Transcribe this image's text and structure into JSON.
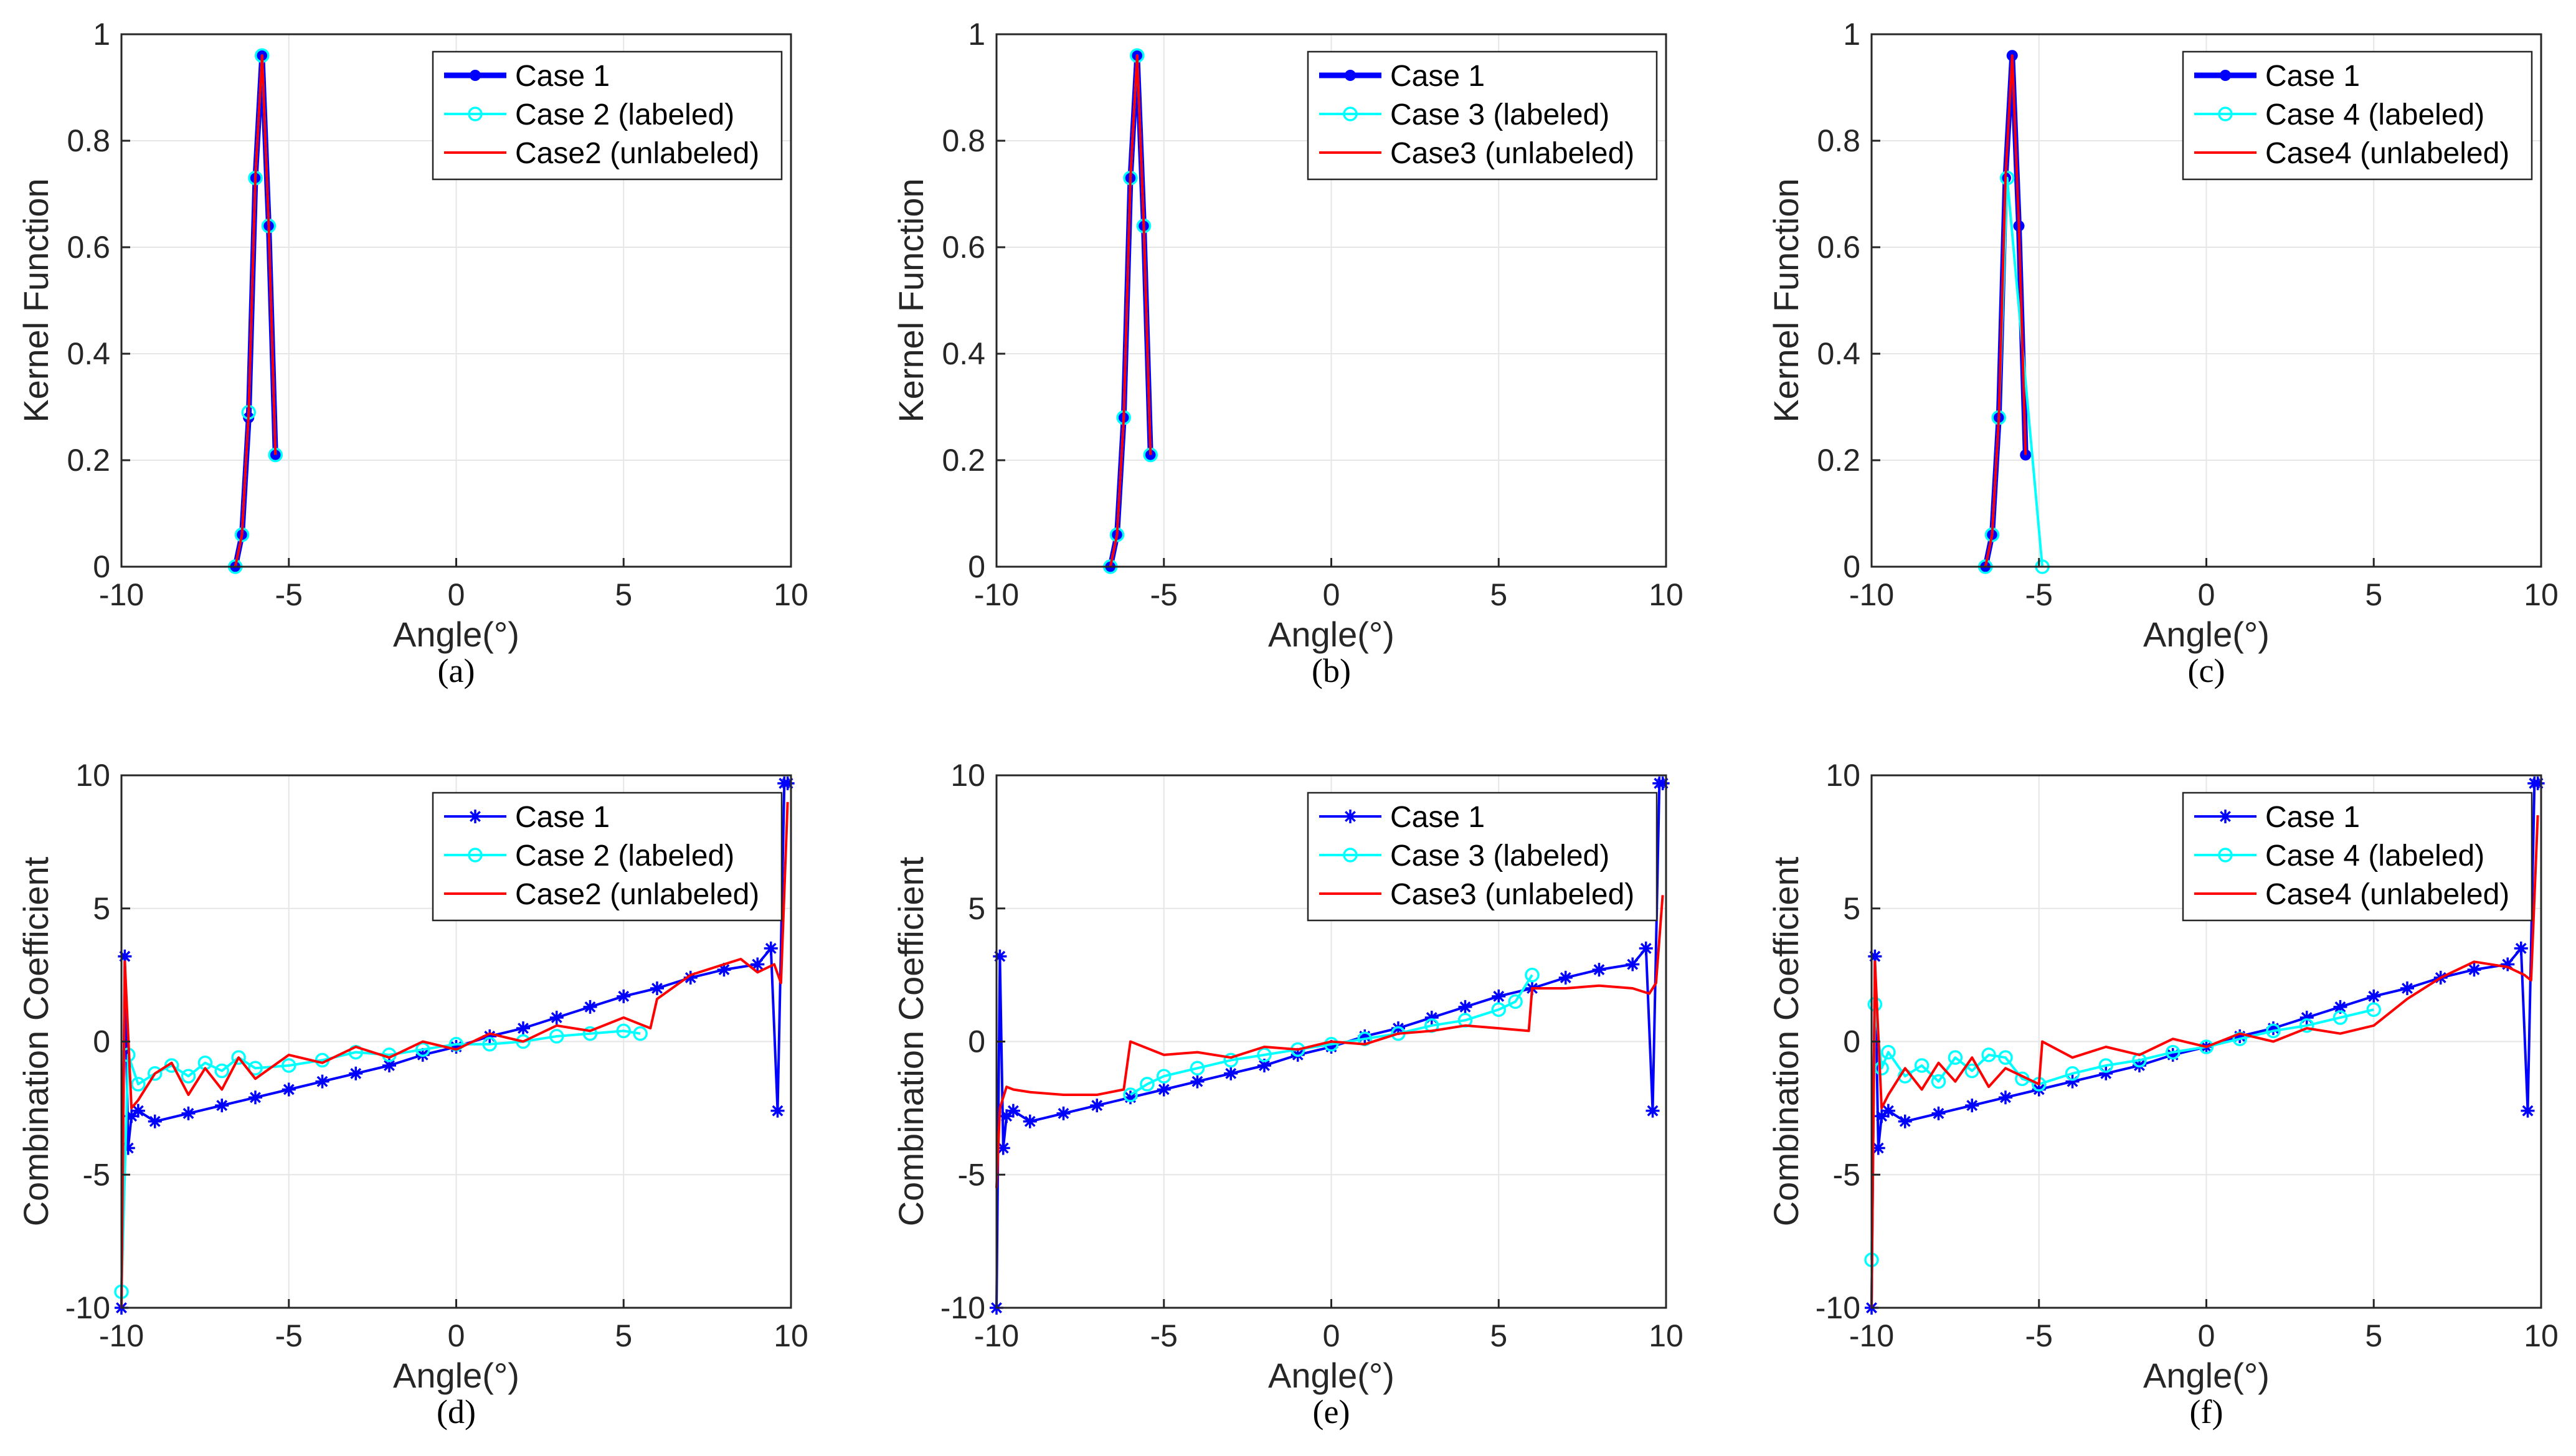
{
  "chart_data": [
    {
      "id": "a",
      "type": "line",
      "caption": "(a)",
      "xlabel": "Angle(°)",
      "ylabel": "Kernel Function",
      "xlim": [
        -10,
        10
      ],
      "ylim": [
        0,
        1
      ],
      "xticks": [
        -10,
        -5,
        0,
        5,
        10
      ],
      "yticks": [
        0,
        0.2,
        0.4,
        0.6,
        0.8,
        1
      ],
      "ytick_labels": [
        "0",
        "0.2",
        "0.4",
        "0.6",
        "0.8",
        "1"
      ],
      "grid": true,
      "legend": "top-right",
      "series": [
        {
          "name": "Case 1",
          "color": "#0000ff",
          "marker": "dot",
          "thick": true,
          "x": [
            -6.6,
            -6.4,
            -6.2,
            -6.0,
            -5.8,
            -5.6,
            -5.4
          ],
          "y": [
            0.0,
            0.06,
            0.28,
            0.73,
            0.96,
            0.64,
            0.21
          ]
        },
        {
          "name": "Case 2 (labeled)",
          "color": "#00ffff",
          "marker": "circle",
          "x": [
            -6.6,
            -6.4,
            -6.2,
            -6.0,
            -5.8,
            -5.6,
            -5.4
          ],
          "y": [
            0.0,
            0.06,
            0.29,
            0.73,
            0.96,
            0.64,
            0.21
          ]
        },
        {
          "name": "Case2 (unlabeled)",
          "color": "#ff0000",
          "marker": "none",
          "x": [
            -6.6,
            -6.4,
            -6.2,
            -6.0,
            -5.8,
            -5.6,
            -5.4
          ],
          "y": [
            0.0,
            0.06,
            0.29,
            0.73,
            0.96,
            0.64,
            0.21
          ]
        }
      ]
    },
    {
      "id": "b",
      "type": "line",
      "caption": "(b)",
      "xlabel": "Angle(°)",
      "ylabel": "Kernel Function",
      "xlim": [
        -10,
        10
      ],
      "ylim": [
        0,
        1
      ],
      "xticks": [
        -10,
        -5,
        0,
        5,
        10
      ],
      "yticks": [
        0,
        0.2,
        0.4,
        0.6,
        0.8,
        1
      ],
      "ytick_labels": [
        "0",
        "0.2",
        "0.4",
        "0.6",
        "0.8",
        "1"
      ],
      "grid": true,
      "legend": "top-right",
      "series": [
        {
          "name": "Case 1",
          "color": "#0000ff",
          "marker": "dot",
          "thick": true,
          "x": [
            -6.6,
            -6.4,
            -6.2,
            -6.0,
            -5.8,
            -5.6,
            -5.4
          ],
          "y": [
            0.0,
            0.06,
            0.28,
            0.73,
            0.96,
            0.64,
            0.21
          ]
        },
        {
          "name": "Case 3 (labeled)",
          "color": "#00ffff",
          "marker": "circle",
          "x": [
            -6.6,
            -6.4,
            -6.2,
            -6.0,
            -5.8,
            -5.6,
            -5.4
          ],
          "y": [
            0.0,
            0.06,
            0.28,
            0.73,
            0.96,
            0.64,
            0.21
          ]
        },
        {
          "name": "Case3 (unlabeled)",
          "color": "#ff0000",
          "marker": "none",
          "x": [
            -6.6,
            -6.4,
            -6.2,
            -6.0,
            -5.8,
            -5.6,
            -5.4
          ],
          "y": [
            0.0,
            0.06,
            0.28,
            0.73,
            0.96,
            0.64,
            0.21
          ]
        }
      ]
    },
    {
      "id": "c",
      "type": "line",
      "caption": "(c)",
      "xlabel": "Angle(°)",
      "ylabel": "Kernel Function",
      "xlim": [
        -10,
        10
      ],
      "ylim": [
        0,
        1
      ],
      "xticks": [
        -10,
        -5,
        0,
        5,
        10
      ],
      "yticks": [
        0,
        0.2,
        0.4,
        0.6,
        0.8,
        1
      ],
      "ytick_labels": [
        "0",
        "0.2",
        "0.4",
        "0.6",
        "0.8",
        "1"
      ],
      "grid": true,
      "legend": "top-right",
      "series": [
        {
          "name": "Case 1",
          "color": "#0000ff",
          "marker": "dot",
          "thick": true,
          "x": [
            -6.6,
            -6.4,
            -6.2,
            -6.0,
            -5.8,
            -5.6,
            -5.4
          ],
          "y": [
            0.0,
            0.06,
            0.28,
            0.73,
            0.96,
            0.64,
            0.21
          ]
        },
        {
          "name": "Case 4 (labeled)",
          "color": "#00ffff",
          "marker": "circle",
          "x": [
            -6.6,
            -6.4,
            -6.2,
            -5.95,
            -4.9
          ],
          "y": [
            0.0,
            0.06,
            0.28,
            0.73,
            0.0
          ]
        },
        {
          "name": "Case4 (unlabeled)",
          "color": "#ff0000",
          "marker": "none",
          "x": [
            -6.6,
            -6.4,
            -6.2,
            -6.0,
            -5.8,
            -5.6,
            -5.4
          ],
          "y": [
            0.0,
            0.06,
            0.28,
            0.73,
            0.96,
            0.64,
            0.21
          ]
        }
      ]
    },
    {
      "id": "d",
      "type": "line",
      "caption": "(d)",
      "xlabel": "Angle(°)",
      "ylabel": "Combination Coefficient",
      "xlim": [
        -10,
        10
      ],
      "ylim": [
        -10,
        10
      ],
      "xticks": [
        -10,
        -5,
        0,
        5,
        10
      ],
      "yticks": [
        -10,
        -5,
        0,
        5,
        10
      ],
      "ytick_labels": [
        "-10",
        "-5",
        "0",
        "5",
        "10"
      ],
      "grid": true,
      "legend": "top-right",
      "series": [
        {
          "name": "Case 1",
          "color": "#0000ff",
          "marker": "star",
          "x": [
            -10,
            -9.9,
            -9.8,
            -9.7,
            -9.5,
            -9,
            -8,
            -7,
            -6,
            -5,
            -4,
            -3,
            -2,
            -1,
            0,
            1,
            2,
            3,
            4,
            5,
            6,
            7,
            8,
            9,
            9.4,
            9.6,
            9.8,
            9.9
          ],
          "y": [
            -10,
            3.2,
            -4.0,
            -2.8,
            -2.6,
            -3.0,
            -2.7,
            -2.4,
            -2.1,
            -1.8,
            -1.5,
            -1.2,
            -0.9,
            -0.5,
            -0.2,
            0.2,
            0.5,
            0.9,
            1.3,
            1.7,
            2.0,
            2.4,
            2.7,
            2.9,
            3.5,
            -2.6,
            9.7,
            9.7
          ]
        },
        {
          "name": "Case 2 (labeled)",
          "color": "#00ffff",
          "marker": "circle",
          "x": [
            -10,
            -9.8,
            -9.5,
            -9,
            -8.5,
            -8,
            -7.5,
            -7,
            -6.5,
            -6,
            -5,
            -4,
            -3,
            -2,
            -1,
            0,
            1,
            2,
            3,
            4,
            5,
            5.5
          ],
          "y": [
            -9.4,
            -0.5,
            -1.6,
            -1.2,
            -0.9,
            -1.3,
            -0.8,
            -1.1,
            -0.6,
            -1.0,
            -0.9,
            -0.7,
            -0.4,
            -0.5,
            -0.3,
            -0.1,
            -0.1,
            0.0,
            0.2,
            0.3,
            0.4,
            0.3
          ]
        },
        {
          "name": "Case2 (unlabeled)",
          "color": "#ff0000",
          "marker": "none",
          "x": [
            -10,
            -9.9,
            -9.7,
            -9.5,
            -9,
            -8.5,
            -8,
            -7.5,
            -7,
            -6.5,
            -6,
            -5,
            -4,
            -3,
            -2,
            -1,
            0,
            1,
            2,
            3,
            4,
            5,
            5.8,
            6,
            7,
            8,
            8.5,
            9,
            9.5,
            9.7,
            9.9
          ],
          "y": [
            -10,
            3.0,
            -2.5,
            -2.2,
            -1.2,
            -0.8,
            -2.0,
            -1.0,
            -1.8,
            -0.6,
            -1.4,
            -0.5,
            -0.8,
            -0.2,
            -0.6,
            0.0,
            -0.3,
            0.3,
            0.0,
            0.6,
            0.4,
            0.9,
            0.5,
            1.6,
            2.5,
            2.9,
            3.1,
            2.6,
            2.9,
            2.2,
            9.0
          ]
        }
      ]
    },
    {
      "id": "e",
      "type": "line",
      "caption": "(e)",
      "xlabel": "Angle(°)",
      "ylabel": "Combination Coefficient",
      "xlim": [
        -10,
        10
      ],
      "ylim": [
        -10,
        10
      ],
      "xticks": [
        -10,
        -5,
        0,
        5,
        10
      ],
      "yticks": [
        -10,
        -5,
        0,
        5,
        10
      ],
      "ytick_labels": [
        "-10",
        "-5",
        "0",
        "5",
        "10"
      ],
      "grid": true,
      "legend": "top-right",
      "series": [
        {
          "name": "Case 1",
          "color": "#0000ff",
          "marker": "star",
          "x": [
            -10,
            -9.9,
            -9.8,
            -9.7,
            -9.5,
            -9,
            -8,
            -7,
            -6,
            -5,
            -4,
            -3,
            -2,
            -1,
            0,
            1,
            2,
            3,
            4,
            5,
            6,
            7,
            8,
            9,
            9.4,
            9.6,
            9.8,
            9.9
          ],
          "y": [
            -10,
            3.2,
            -4.0,
            -2.8,
            -2.6,
            -3.0,
            -2.7,
            -2.4,
            -2.1,
            -1.8,
            -1.5,
            -1.2,
            -0.9,
            -0.5,
            -0.2,
            0.2,
            0.5,
            0.9,
            1.3,
            1.7,
            2.0,
            2.4,
            2.7,
            2.9,
            3.5,
            -2.6,
            9.7,
            9.7
          ]
        },
        {
          "name": "Case 3 (labeled)",
          "color": "#00ffff",
          "marker": "circle",
          "x": [
            -6.0,
            -5.5,
            -5,
            -4,
            -3,
            -2,
            -1,
            0,
            1,
            2,
            3,
            4,
            5,
            5.5,
            6
          ],
          "y": [
            -2.0,
            -1.6,
            -1.3,
            -1.0,
            -0.7,
            -0.5,
            -0.3,
            -0.1,
            0.1,
            0.3,
            0.6,
            0.8,
            1.2,
            1.5,
            2.5
          ]
        },
        {
          "name": "Case3 (unlabeled)",
          "color": "#ff0000",
          "marker": "none",
          "x": [
            -10,
            -9.9,
            -9.7,
            -9.5,
            -9,
            -8,
            -7,
            -6.2,
            -6,
            -5,
            -4,
            -3,
            -2,
            -1,
            0,
            1,
            2,
            3,
            4,
            5,
            5.9,
            6,
            7,
            8,
            9,
            9.5,
            9.7,
            9.9
          ],
          "y": [
            -5.5,
            -2.5,
            -1.7,
            -1.8,
            -1.9,
            -2.0,
            -2.0,
            -1.8,
            0.0,
            -0.5,
            -0.4,
            -0.6,
            -0.2,
            -0.3,
            0.0,
            -0.1,
            0.3,
            0.4,
            0.6,
            0.5,
            0.4,
            2.0,
            2.0,
            2.1,
            2.0,
            1.8,
            2.2,
            5.5
          ]
        }
      ]
    },
    {
      "id": "f",
      "type": "line",
      "caption": "(f)",
      "xlabel": "Angle(°)",
      "ylabel": "Combination Coefficient",
      "xlim": [
        -10,
        10
      ],
      "ylim": [
        -10,
        10
      ],
      "xticks": [
        -10,
        -5,
        0,
        5,
        10
      ],
      "yticks": [
        -10,
        -5,
        0,
        5,
        10
      ],
      "ytick_labels": [
        "-10",
        "-5",
        "0",
        "5",
        "10"
      ],
      "grid": true,
      "legend": "top-right",
      "series": [
        {
          "name": "Case 1",
          "color": "#0000ff",
          "marker": "star",
          "x": [
            -10,
            -9.9,
            -9.8,
            -9.7,
            -9.5,
            -9,
            -8,
            -7,
            -6,
            -5,
            -4,
            -3,
            -2,
            -1,
            0,
            1,
            2,
            3,
            4,
            5,
            6,
            7,
            8,
            9,
            9.4,
            9.6,
            9.8,
            9.9
          ],
          "y": [
            -10,
            3.2,
            -4.0,
            -2.8,
            -2.6,
            -3.0,
            -2.7,
            -2.4,
            -2.1,
            -1.8,
            -1.5,
            -1.2,
            -0.9,
            -0.5,
            -0.2,
            0.2,
            0.5,
            0.9,
            1.3,
            1.7,
            2.0,
            2.4,
            2.7,
            2.9,
            3.5,
            -2.6,
            9.7,
            9.7
          ]
        },
        {
          "name": "Case 4 (labeled)",
          "color": "#00ffff",
          "marker": "circle",
          "x": [
            -10,
            -9.9,
            -9.7,
            -9.5,
            -9,
            -8.5,
            -8,
            -7.5,
            -7,
            -6.5,
            -6,
            -5.5,
            -5,
            -4,
            -3,
            -2,
            -1,
            0,
            1,
            2,
            3,
            4,
            5
          ],
          "y": [
            -8.2,
            1.4,
            -1.0,
            -0.4,
            -1.3,
            -0.9,
            -1.5,
            -0.6,
            -1.1,
            -0.5,
            -0.6,
            -1.4,
            -1.6,
            -1.2,
            -0.9,
            -0.7,
            -0.4,
            -0.2,
            0.1,
            0.4,
            0.6,
            0.9,
            1.2
          ]
        },
        {
          "name": "Case4 (unlabeled)",
          "color": "#ff0000",
          "marker": "none",
          "x": [
            -10,
            -9.9,
            -9.7,
            -9.5,
            -9,
            -8.5,
            -8,
            -7.5,
            -7,
            -6.5,
            -6,
            -5.5,
            -5,
            -4.9,
            -4,
            -3,
            -2,
            -1,
            0,
            1,
            2,
            3,
            4,
            5,
            6,
            7,
            8,
            9,
            9.5,
            9.7,
            9.9
          ],
          "y": [
            -10,
            3.0,
            -2.5,
            -2.0,
            -1.0,
            -1.8,
            -0.8,
            -1.5,
            -0.6,
            -1.7,
            -1.0,
            -1.3,
            -1.6,
            0.0,
            -0.6,
            -0.2,
            -0.5,
            0.1,
            -0.2,
            0.3,
            0.0,
            0.5,
            0.3,
            0.6,
            1.6,
            2.4,
            3.0,
            2.8,
            2.5,
            2.3,
            8.5
          ]
        }
      ]
    }
  ]
}
